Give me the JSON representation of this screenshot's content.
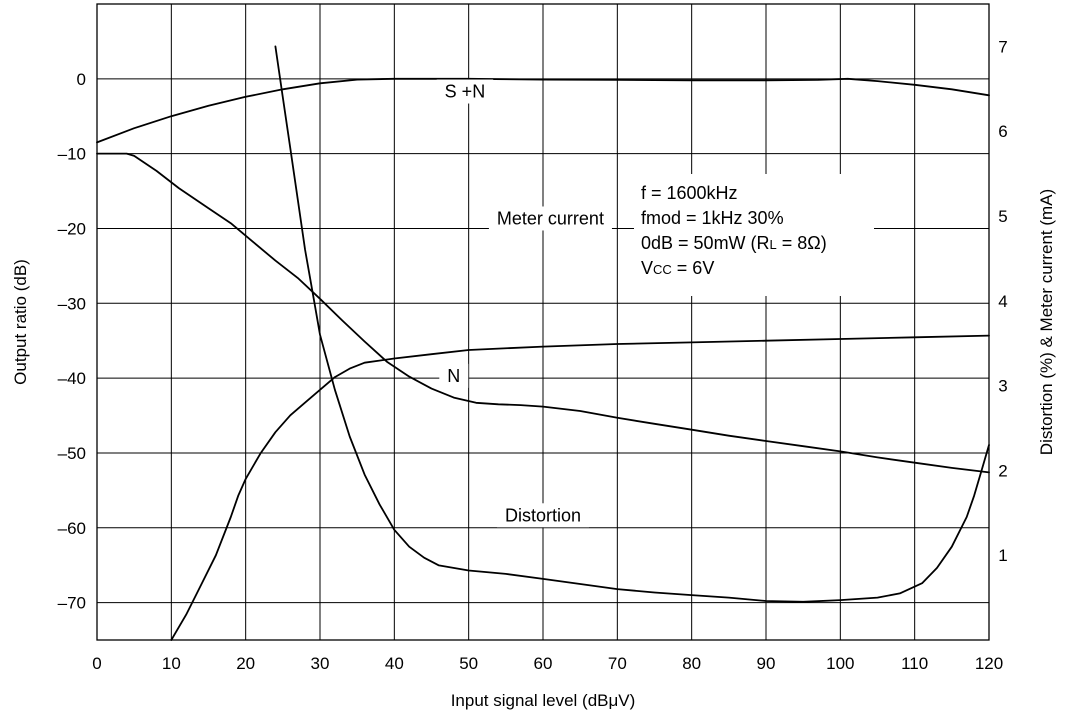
{
  "chart_data": {
    "type": "line",
    "x_axis": {
      "label": "Input signal level (dBμV)",
      "range": [
        0,
        120
      ],
      "ticks": [
        "0",
        "10",
        "20",
        "30",
        "40",
        "50",
        "60",
        "70",
        "80",
        "90",
        "100",
        "110",
        "120"
      ]
    },
    "y_axis_left": {
      "label": "Output ratio (dB)",
      "range": [
        -75,
        10
      ],
      "tick_values": [
        0,
        -10,
        -20,
        -30,
        -40,
        -50,
        -60,
        -70
      ],
      "ticks": [
        "0",
        "–10",
        "–20",
        "–30",
        "–40",
        "–50",
        "–60",
        "–70"
      ]
    },
    "y_axis_right": {
      "label": "Distortion (%) & Meter current (mA)",
      "range": [
        0,
        7.5
      ],
      "tick_values": [
        1,
        2,
        3,
        4,
        5,
        6,
        7
      ],
      "ticks": [
        "1",
        "2",
        "3",
        "4",
        "5",
        "6",
        "7"
      ]
    },
    "grid": true,
    "conditions": [
      [
        "f = 1600kHz"
      ],
      [
        "fmod = 1kHz 30%"
      ],
      [
        "0dB = 50mW (R",
        "L",
        " = 8Ω)"
      ],
      [
        "V",
        "CC",
        " = 6V"
      ]
    ],
    "series": [
      {
        "name": "S +N",
        "axis": "left",
        "label_at": [
          49.5,
          -2.5
        ],
        "points": [
          [
            0,
            -8.5
          ],
          [
            5,
            -6.6
          ],
          [
            10,
            -5.0
          ],
          [
            15,
            -3.6
          ],
          [
            20,
            -2.4
          ],
          [
            25,
            -1.4
          ],
          [
            30,
            -0.6
          ],
          [
            35,
            -0.1
          ],
          [
            40,
            0
          ],
          [
            50,
            0
          ],
          [
            60,
            -0.1
          ],
          [
            70,
            -0.15
          ],
          [
            80,
            -0.2
          ],
          [
            90,
            -0.2
          ],
          [
            97,
            -0.15
          ],
          [
            101,
            0
          ],
          [
            105,
            -0.3
          ],
          [
            110,
            -0.8
          ],
          [
            115,
            -1.4
          ],
          [
            120,
            -2.2
          ]
        ]
      },
      {
        "name": "N",
        "axis": "left",
        "label_at": [
          48,
          -40.5
        ],
        "points": [
          [
            0,
            -10
          ],
          [
            4,
            -10
          ],
          [
            5,
            -10.3
          ],
          [
            8,
            -12.3
          ],
          [
            11,
            -14.6
          ],
          [
            15,
            -17.3
          ],
          [
            18,
            -19.3
          ],
          [
            21,
            -21.8
          ],
          [
            24,
            -24.3
          ],
          [
            27,
            -26.6
          ],
          [
            30,
            -29.4
          ],
          [
            33,
            -32.3
          ],
          [
            36,
            -35.1
          ],
          [
            39,
            -37.8
          ],
          [
            42,
            -39.8
          ],
          [
            45,
            -41.4
          ],
          [
            48,
            -42.6
          ],
          [
            51,
            -43.3
          ],
          [
            54,
            -43.5
          ],
          [
            57,
            -43.6
          ],
          [
            60,
            -43.8
          ],
          [
            65,
            -44.4
          ],
          [
            70,
            -45.3
          ],
          [
            75,
            -46.1
          ],
          [
            80,
            -46.9
          ],
          [
            85,
            -47.7
          ],
          [
            90,
            -48.4
          ],
          [
            95,
            -49.1
          ],
          [
            100,
            -49.8
          ],
          [
            105,
            -50.6
          ],
          [
            110,
            -51.3
          ],
          [
            115,
            -52.0
          ],
          [
            120,
            -52.6
          ]
        ]
      },
      {
        "name": "Meter current",
        "axis": "right",
        "label_at": [
          61,
          4.9
        ],
        "points": [
          [
            10,
            0
          ],
          [
            12,
            0.3
          ],
          [
            14,
            0.65
          ],
          [
            16,
            1.0
          ],
          [
            18,
            1.45
          ],
          [
            19,
            1.7
          ],
          [
            20,
            1.9
          ],
          [
            22,
            2.2
          ],
          [
            24,
            2.45
          ],
          [
            26,
            2.65
          ],
          [
            28,
            2.8
          ],
          [
            30,
            2.95
          ],
          [
            32,
            3.1
          ],
          [
            34,
            3.2
          ],
          [
            36,
            3.27
          ],
          [
            40,
            3.32
          ],
          [
            45,
            3.37
          ],
          [
            50,
            3.42
          ],
          [
            60,
            3.46
          ],
          [
            70,
            3.49
          ],
          [
            80,
            3.51
          ],
          [
            90,
            3.53
          ],
          [
            100,
            3.55
          ],
          [
            110,
            3.57
          ],
          [
            120,
            3.59
          ]
        ]
      },
      {
        "name": "Distortion",
        "axis": "right",
        "label_at": [
          60,
          1.4
        ],
        "points": [
          [
            24,
            7.0
          ],
          [
            25,
            6.4
          ],
          [
            26,
            5.8
          ],
          [
            27,
            5.2
          ],
          [
            28,
            4.6
          ],
          [
            29,
            4.1
          ],
          [
            30,
            3.6
          ],
          [
            32,
            2.95
          ],
          [
            34,
            2.4
          ],
          [
            36,
            1.95
          ],
          [
            38,
            1.6
          ],
          [
            40,
            1.3
          ],
          [
            42,
            1.1
          ],
          [
            44,
            0.97
          ],
          [
            46,
            0.88
          ],
          [
            50,
            0.82
          ],
          [
            55,
            0.78
          ],
          [
            60,
            0.72
          ],
          [
            65,
            0.66
          ],
          [
            70,
            0.6
          ],
          [
            75,
            0.56
          ],
          [
            80,
            0.53
          ],
          [
            85,
            0.5
          ],
          [
            90,
            0.46
          ],
          [
            95,
            0.45
          ],
          [
            100,
            0.47
          ],
          [
            105,
            0.5
          ],
          [
            108,
            0.55
          ],
          [
            111,
            0.67
          ],
          [
            113,
            0.85
          ],
          [
            115,
            1.1
          ],
          [
            117,
            1.45
          ],
          [
            118,
            1.7
          ],
          [
            119,
            2.0
          ],
          [
            120,
            2.3
          ]
        ]
      }
    ]
  }
}
